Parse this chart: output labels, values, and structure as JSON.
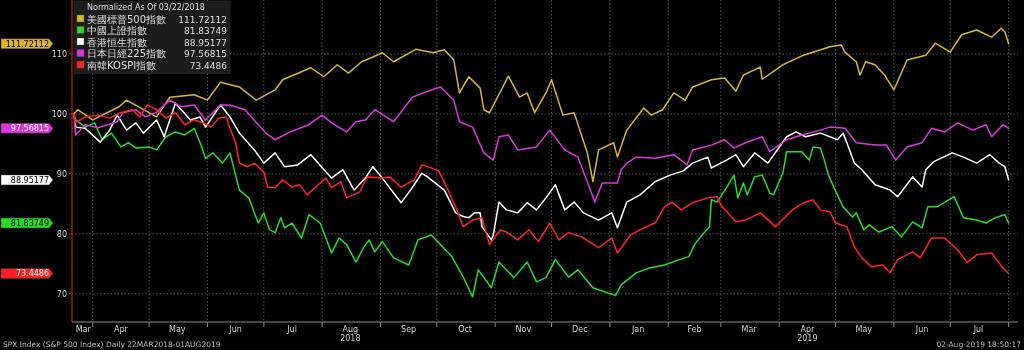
{
  "chart_data": {
    "type": "line",
    "legend_title": "Normalized As Of 03/22/2018",
    "legend": "top left",
    "grid": true,
    "xlim": [
      "2018-03-21",
      "2019-08-06"
    ],
    "ylim": [
      65.3,
      119
    ],
    "yticks": [
      70,
      80,
      90,
      100,
      110
    ],
    "xticks": [
      {
        "value": "2018-03-27",
        "label": "Mar"
      },
      {
        "value": "2018-04-01",
        "label": null
      },
      {
        "value": "2018-04-16",
        "label": "Apr"
      },
      {
        "value": "2018-05-01",
        "label": null
      },
      {
        "value": "2018-05-16",
        "label": "May"
      },
      {
        "value": "2018-06-01",
        "label": null
      },
      {
        "value": "2018-06-16",
        "label": "Jun"
      },
      {
        "value": "2018-07-01",
        "label": null
      },
      {
        "value": "2018-07-16",
        "label": "Jul"
      },
      {
        "value": "2018-08-01",
        "label": null
      },
      {
        "value": "2018-08-16",
        "label": "Aug\n2018"
      },
      {
        "value": "2018-09-01",
        "label": null
      },
      {
        "value": "2018-09-16",
        "label": "Sep"
      },
      {
        "value": "2018-10-01",
        "label": null
      },
      {
        "value": "2018-10-16",
        "label": "Oct"
      },
      {
        "value": "2018-11-01",
        "label": null
      },
      {
        "value": "2018-11-16",
        "label": "Nov"
      },
      {
        "value": "2018-12-01",
        "label": null
      },
      {
        "value": "2018-12-16",
        "label": "Dec"
      },
      {
        "value": "2019-01-01",
        "label": null
      },
      {
        "value": "2019-01-16",
        "label": "Jan"
      },
      {
        "value": "2019-02-01",
        "label": null
      },
      {
        "value": "2019-02-15",
        "label": "Feb"
      },
      {
        "value": "2019-03-01",
        "label": null
      },
      {
        "value": "2019-03-16",
        "label": "Mar"
      },
      {
        "value": "2019-04-01",
        "label": null
      },
      {
        "value": "2019-04-16",
        "label": "Apr\n2019"
      },
      {
        "value": "2019-05-01",
        "label": null
      },
      {
        "value": "2019-05-16",
        "label": "May"
      },
      {
        "value": "2019-06-01",
        "label": null
      },
      {
        "value": "2019-06-16",
        "label": "Jun"
      },
      {
        "value": "2019-07-01",
        "label": null
      },
      {
        "value": "2019-07-16",
        "label": "Jul"
      },
      {
        "value": "2019-08-01",
        "label": null
      }
    ],
    "annotations": [
      "111.72112",
      "81.83749",
      "88.95177",
      "97.56815",
      "73.4486",
      "SPX Index (S&P 500 Index)  Daily 22MAR2018-01AUG2019",
      "02-Aug-2019 18:50:17"
    ],
    "series": [
      {
        "name": "美國標普500指數",
        "color": "#d9b52c",
        "x": [
          "2018-03-22",
          "2018-03-24",
          "2018-04-01",
          "2018-04-15",
          "2018-04-19",
          "2018-05-05",
          "2018-05-12",
          "2018-05-25",
          "2018-06-01",
          "2018-06-08",
          "2018-06-18",
          "2018-06-27",
          "2018-07-07",
          "2018-07-11",
          "2018-07-26",
          "2018-08-02",
          "2018-08-09",
          "2018-08-15",
          "2018-08-22",
          "2018-08-28",
          "2018-09-02",
          "2018-09-08",
          "2018-09-20",
          "2018-09-29",
          "2018-10-05",
          "2018-10-10",
          "2018-10-13",
          "2018-10-18",
          "2018-10-24",
          "2018-10-26",
          "2018-10-29",
          "2018-11-08",
          "2018-11-14",
          "2018-11-18",
          "2018-11-22",
          "2018-11-28",
          "2018-12-01",
          "2018-12-07",
          "2018-12-13",
          "2018-12-20",
          "2018-12-23",
          "2018-12-26",
          "2019-01-03",
          "2019-01-05",
          "2019-01-10",
          "2019-01-19",
          "2019-01-23",
          "2019-01-29",
          "2019-02-04",
          "2019-02-10",
          "2019-02-14",
          "2019-02-24",
          "2019-03-03",
          "2019-03-09",
          "2019-03-13",
          "2019-03-22",
          "2019-03-23",
          "2019-04-03",
          "2019-04-14",
          "2019-04-28",
          "2019-05-04",
          "2019-05-06",
          "2019-05-12",
          "2019-05-14",
          "2019-05-17",
          "2019-05-22",
          "2019-05-27",
          "2019-06-01",
          "2019-06-08",
          "2019-06-18",
          "2019-06-23",
          "2019-07-01",
          "2019-07-07",
          "2019-07-15",
          "2019-07-23",
          "2019-07-28",
          "2019-07-30",
          "2019-08-01"
        ],
        "values": [
          100,
          100.7,
          99,
          101.2,
          102.3,
          99.5,
          102.8,
          103.2,
          102.3,
          105.3,
          104.5,
          102.3,
          104,
          105.7,
          107.7,
          106.2,
          108.2,
          106.8,
          108.7,
          109.5,
          110.2,
          108.7,
          110.8,
          110.2,
          110.7,
          109,
          103.5,
          106.2,
          104.3,
          100.7,
          100.2,
          106.3,
          102.8,
          103.5,
          100.2,
          103.5,
          105.7,
          99.8,
          100.2,
          93.5,
          88.7,
          94,
          95.2,
          92.8,
          97.3,
          101,
          99.8,
          100.7,
          103.5,
          102.3,
          104.5,
          105.7,
          106,
          103.8,
          106.5,
          107.8,
          105.8,
          108.2,
          109.8,
          111.2,
          111.5,
          110.3,
          108.7,
          106.5,
          108.7,
          108.2,
          106.5,
          104,
          109,
          109.8,
          111.8,
          110.3,
          113.2,
          114,
          112.8,
          114.3,
          113.7,
          111.7
        ]
      },
      {
        "name": "中國上證指數",
        "color": "#22dd22",
        "x": [
          "2018-03-22",
          "2018-03-23",
          "2018-03-28",
          "2018-04-02",
          "2018-04-06",
          "2018-04-11",
          "2018-04-16",
          "2018-04-20",
          "2018-04-24",
          "2018-05-01",
          "2018-05-05",
          "2018-05-10",
          "2018-05-15",
          "2018-05-20",
          "2018-05-25",
          "2018-05-29",
          "2018-05-31",
          "2018-06-04",
          "2018-06-09",
          "2018-06-13",
          "2018-06-18",
          "2018-06-23",
          "2018-06-28",
          "2018-07-01",
          "2018-07-04",
          "2018-07-07",
          "2018-07-10",
          "2018-07-12",
          "2018-07-16",
          "2018-07-21",
          "2018-07-25",
          "2018-07-31",
          "2018-08-06",
          "2018-08-10",
          "2018-08-14",
          "2018-08-19",
          "2018-08-23",
          "2018-08-26",
          "2018-08-29",
          "2018-09-02",
          "2018-09-08",
          "2018-09-16",
          "2018-09-21",
          "2018-09-28",
          "2018-10-09",
          "2018-10-15",
          "2018-10-20",
          "2018-10-23",
          "2018-10-26",
          "2018-10-30",
          "2018-11-03",
          "2018-11-11",
          "2018-11-18",
          "2018-11-23",
          "2018-11-28",
          "2018-12-03",
          "2018-12-10",
          "2018-12-15",
          "2018-12-23",
          "2019-01-04",
          "2019-01-07",
          "2019-01-15",
          "2019-01-22",
          "2019-01-30",
          "2019-02-07",
          "2019-02-12",
          "2019-02-15",
          "2019-02-19",
          "2019-02-23",
          "2019-02-24",
          "2019-02-27",
          "2019-03-04",
          "2019-03-08",
          "2019-03-10",
          "2019-03-13",
          "2019-03-15",
          "2019-03-19",
          "2019-03-23",
          "2019-03-27",
          "2019-03-29",
          "2019-04-03",
          "2019-04-05",
          "2019-04-13",
          "2019-04-17",
          "2019-04-19",
          "2019-04-23",
          "2019-04-25",
          "2019-04-27",
          "2019-04-29",
          "2019-05-05",
          "2019-05-10",
          "2019-05-12",
          "2019-05-16",
          "2019-05-19",
          "2019-05-24",
          "2019-05-31",
          "2019-06-05",
          "2019-06-11",
          "2019-06-16",
          "2019-06-19",
          "2019-06-24",
          "2019-07-03",
          "2019-07-08",
          "2019-07-15",
          "2019-07-20",
          "2019-07-25",
          "2019-07-30",
          "2019-08-01"
        ],
        "values": [
          100,
          99,
          97.8,
          98.5,
          95.7,
          96.8,
          94.5,
          95.2,
          94.3,
          94.5,
          94,
          96.2,
          97,
          96.5,
          97.6,
          94.5,
          92.6,
          93.5,
          91.8,
          93.5,
          87.3,
          86,
          81.8,
          83.5,
          80.7,
          80.2,
          82.7,
          81,
          81.8,
          79.3,
          83.2,
          81.8,
          76.8,
          79.3,
          78.2,
          75.3,
          77.7,
          79,
          77,
          78.7,
          76,
          74.8,
          79,
          79.8,
          76.2,
          72.8,
          69.5,
          74,
          72.7,
          71,
          75.3,
          72.7,
          75.3,
          72,
          72.7,
          75.7,
          72.8,
          74,
          71,
          69.7,
          71.5,
          73.5,
          74.3,
          74.8,
          75.7,
          76.2,
          78.2,
          79.8,
          81.2,
          85.7,
          85.3,
          87.7,
          89.8,
          86,
          88.5,
          86.5,
          89.5,
          89.8,
          86.8,
          86.5,
          90.2,
          93.7,
          93.7,
          92.3,
          94.5,
          94.3,
          92.3,
          90,
          88.5,
          84.5,
          82.8,
          83.5,
          80.7,
          81.5,
          80.3,
          81.2,
          79.5,
          82,
          81,
          84.5,
          84.5,
          86.2,
          82.7,
          82.3,
          81.8,
          82.7,
          83.2,
          81.8
        ]
      },
      {
        "name": "香港恒生指數",
        "color": "#ffffff",
        "x": [
          "2018-03-22",
          "2018-03-23",
          "2018-03-28",
          "2018-04-05",
          "2018-04-10",
          "2018-04-14",
          "2018-04-19",
          "2018-04-24",
          "2018-04-28",
          "2018-05-05",
          "2018-05-09",
          "2018-05-15",
          "2018-05-23",
          "2018-05-28",
          "2018-05-31",
          "2018-06-08",
          "2018-06-13",
          "2018-06-18",
          "2018-06-26",
          "2018-07-01",
          "2018-07-07",
          "2018-07-12",
          "2018-07-19",
          "2018-07-26",
          "2018-08-02",
          "2018-08-06",
          "2018-08-12",
          "2018-08-18",
          "2018-08-24",
          "2018-08-28",
          "2018-09-02",
          "2018-09-12",
          "2018-09-17",
          "2018-09-23",
          "2018-09-26",
          "2018-10-05",
          "2018-10-11",
          "2018-10-15",
          "2018-10-18",
          "2018-10-21",
          "2018-10-24",
          "2018-10-25",
          "2018-10-30",
          "2018-10-31",
          "2018-11-03",
          "2018-11-07",
          "2018-11-13",
          "2018-11-18",
          "2018-11-23",
          "2018-11-28",
          "2018-12-03",
          "2018-12-08",
          "2018-12-13",
          "2018-12-18",
          "2018-12-26",
          "2019-01-02",
          "2019-01-05",
          "2019-01-10",
          "2019-01-17",
          "2019-01-25",
          "2019-02-02",
          "2019-02-09",
          "2019-02-14",
          "2019-02-22",
          "2019-02-24",
          "2019-03-04",
          "2019-03-09",
          "2019-03-13",
          "2019-03-19",
          "2019-03-26",
          "2019-04-05",
          "2019-04-10",
          "2019-04-15",
          "2019-04-23",
          "2019-04-28",
          "2019-05-02",
          "2019-05-05",
          "2019-05-07",
          "2019-05-11",
          "2019-05-15",
          "2019-05-22",
          "2019-05-30",
          "2019-06-03",
          "2019-06-11",
          "2019-06-16",
          "2019-06-18",
          "2019-06-22",
          "2019-07-02",
          "2019-07-08",
          "2019-07-15",
          "2019-07-22",
          "2019-07-27",
          "2019-07-30",
          "2019-08-01"
        ],
        "values": [
          100,
          97.8,
          97.6,
          95.3,
          97.3,
          99.8,
          97.3,
          98.5,
          96.8,
          99,
          96.2,
          101.8,
          99,
          99.5,
          97.8,
          101.5,
          99.5,
          96.8,
          94,
          91.8,
          93.5,
          91.2,
          91.5,
          93.2,
          90.7,
          89.3,
          90.7,
          87.3,
          89.3,
          91.2,
          89.3,
          85.2,
          87.3,
          90.1,
          89.5,
          87.3,
          83.5,
          82.9,
          82.7,
          83.5,
          83.5,
          81.2,
          79,
          79.8,
          85.3,
          84,
          83.5,
          85.2,
          84,
          86,
          88.2,
          84,
          85.3,
          83.5,
          82.3,
          83.5,
          81,
          85.3,
          86.5,
          88.7,
          89.8,
          90.5,
          91.8,
          92.8,
          91,
          92.3,
          93.2,
          91.2,
          93.5,
          91.8,
          96.2,
          97,
          96.2,
          96.8,
          96.2,
          95.7,
          96.8,
          95.2,
          91.8,
          90.7,
          88.2,
          87.3,
          86.2,
          89.5,
          87.8,
          90.7,
          92,
          93.5,
          92.8,
          91.8,
          93.2,
          91.8,
          91.2,
          89
        ]
      },
      {
        "name": "日本日經225指數",
        "color": "#e034e0",
        "x": [
          "2018-03-22",
          "2018-03-23",
          "2018-03-28",
          "2018-04-04",
          "2018-04-14",
          "2018-04-17",
          "2018-04-24",
          "2018-04-29",
          "2018-05-05",
          "2018-05-12",
          "2018-05-18",
          "2018-05-25",
          "2018-05-31",
          "2018-06-08",
          "2018-06-13",
          "2018-06-21",
          "2018-07-02",
          "2018-07-07",
          "2018-07-15",
          "2018-07-25",
          "2018-08-01",
          "2018-08-06",
          "2018-08-14",
          "2018-08-19",
          "2018-08-24",
          "2018-08-29",
          "2018-09-08",
          "2018-09-18",
          "2018-09-28",
          "2018-10-03",
          "2018-10-10",
          "2018-10-13",
          "2018-10-20",
          "2018-10-26",
          "2018-10-31",
          "2018-11-03",
          "2018-11-08",
          "2018-11-13",
          "2018-11-23",
          "2018-11-30",
          "2018-12-08",
          "2018-12-15",
          "2018-12-24",
          "2018-12-28",
          "2019-01-05",
          "2019-01-07",
          "2019-01-10",
          "2019-01-15",
          "2019-01-25",
          "2019-02-04",
          "2019-02-11",
          "2019-02-14",
          "2019-02-24",
          "2019-03-03",
          "2019-03-08",
          "2019-03-14",
          "2019-03-23",
          "2019-03-27",
          "2019-04-05",
          "2019-04-13",
          "2019-04-23",
          "2019-04-28",
          "2019-05-06",
          "2019-05-12",
          "2019-05-22",
          "2019-05-28",
          "2019-06-02",
          "2019-06-08",
          "2019-06-16",
          "2019-06-21",
          "2019-06-28",
          "2019-07-05",
          "2019-07-13",
          "2019-07-20",
          "2019-07-23",
          "2019-07-29",
          "2019-08-01"
        ],
        "values": [
          100,
          96.5,
          98.2,
          97.7,
          98.7,
          100.2,
          100.7,
          99.5,
          100.3,
          102.3,
          101.2,
          101.5,
          99,
          101.5,
          101.5,
          100.7,
          96.8,
          95.7,
          97,
          98.2,
          99.8,
          98.5,
          97,
          98.7,
          99,
          100.7,
          98.7,
          102.8,
          104,
          104.5,
          102.3,
          98.7,
          97.8,
          93.5,
          92.3,
          96.2,
          96.5,
          94,
          94.5,
          97.3,
          94,
          92.8,
          85.3,
          88.5,
          88.5,
          90.7,
          91.8,
          92.8,
          92.6,
          93.2,
          91.5,
          94,
          94.8,
          95.7,
          94.3,
          95.2,
          96.2,
          93.7,
          95.7,
          96.5,
          97.3,
          97.8,
          97.6,
          95.2,
          94.8,
          94.8,
          92.3,
          94.5,
          95.2,
          97.6,
          97,
          98.5,
          97.3,
          98.2,
          96.2,
          98.2,
          97.6
        ]
      },
      {
        "name": "南韓KOSPI指數",
        "color": "#ff2020",
        "x": [
          "2018-03-22",
          "2018-03-23",
          "2018-03-28",
          "2018-04-04",
          "2018-04-10",
          "2018-04-16",
          "2018-04-22",
          "2018-04-26",
          "2018-04-30",
          "2018-05-05",
          "2018-05-10",
          "2018-05-15",
          "2018-05-20",
          "2018-05-25",
          "2018-05-30",
          "2018-06-03",
          "2018-06-07",
          "2018-06-11",
          "2018-06-13",
          "2018-06-16",
          "2018-06-18",
          "2018-06-22",
          "2018-06-26",
          "2018-07-01",
          "2018-07-03",
          "2018-07-07",
          "2018-07-11",
          "2018-07-16",
          "2018-07-20",
          "2018-07-24",
          "2018-07-30",
          "2018-08-03",
          "2018-08-06",
          "2018-08-11",
          "2018-08-14",
          "2018-08-21",
          "2018-08-25",
          "2018-09-02",
          "2018-09-06",
          "2018-09-12",
          "2018-09-19",
          "2018-09-23",
          "2018-09-28",
          "2018-10-02",
          "2018-10-07",
          "2018-10-11",
          "2018-10-15",
          "2018-10-20",
          "2018-10-25",
          "2018-10-29",
          "2018-11-01",
          "2018-11-04",
          "2018-11-07",
          "2018-11-13",
          "2018-11-19",
          "2018-11-24",
          "2018-11-30",
          "2018-12-05",
          "2018-12-10",
          "2018-12-17",
          "2018-12-26",
          "2019-01-02",
          "2019-01-05",
          "2019-01-12",
          "2019-01-17",
          "2019-01-25",
          "2019-01-30",
          "2019-02-03",
          "2019-02-08",
          "2019-02-14",
          "2019-02-22",
          "2019-02-27",
          "2019-03-01",
          "2019-03-09",
          "2019-03-14",
          "2019-03-22",
          "2019-03-30",
          "2019-04-08",
          "2019-04-14",
          "2019-04-19",
          "2019-04-23",
          "2019-04-28",
          "2019-05-01",
          "2019-05-07",
          "2019-05-11",
          "2019-05-15",
          "2019-05-20",
          "2019-05-26",
          "2019-05-30",
          "2019-06-03",
          "2019-06-11",
          "2019-06-15",
          "2019-06-21",
          "2019-06-28",
          "2019-07-05",
          "2019-07-10",
          "2019-07-15",
          "2019-07-23",
          "2019-07-29",
          "2019-08-01"
        ],
        "values": [
          100,
          98.5,
          99.5,
          99.8,
          99.3,
          100.2,
          100.7,
          99.5,
          101.5,
          100.7,
          99.3,
          100.2,
          98.2,
          99,
          98.5,
          97.8,
          99.3,
          99.5,
          97.6,
          95.2,
          91.8,
          91.2,
          91.8,
          90.3,
          87.8,
          87.7,
          89,
          87.8,
          88.2,
          86.5,
          88.2,
          89.3,
          87.7,
          88.7,
          86,
          87,
          89.5,
          89.3,
          89.5,
          87.8,
          89,
          91.5,
          91,
          90.5,
          87.3,
          84.5,
          81.2,
          82.3,
          82.7,
          78.2,
          79.5,
          80.7,
          80.3,
          79,
          80.7,
          78.7,
          81.8,
          79,
          80.2,
          79.5,
          77.7,
          79.3,
          76.8,
          79.8,
          80.7,
          81.8,
          84.5,
          85.3,
          84,
          85.2,
          86,
          86.2,
          84.8,
          82,
          82.3,
          83.5,
          81.2,
          84,
          85.2,
          85.7,
          84,
          83.7,
          81.8,
          81.2,
          77.8,
          76,
          74.5,
          74.8,
          73.5,
          75.7,
          77,
          76,
          79.3,
          79.3,
          77.3,
          75.2,
          76.5,
          76.8,
          74.3,
          73.4
        ]
      }
    ]
  }
}
